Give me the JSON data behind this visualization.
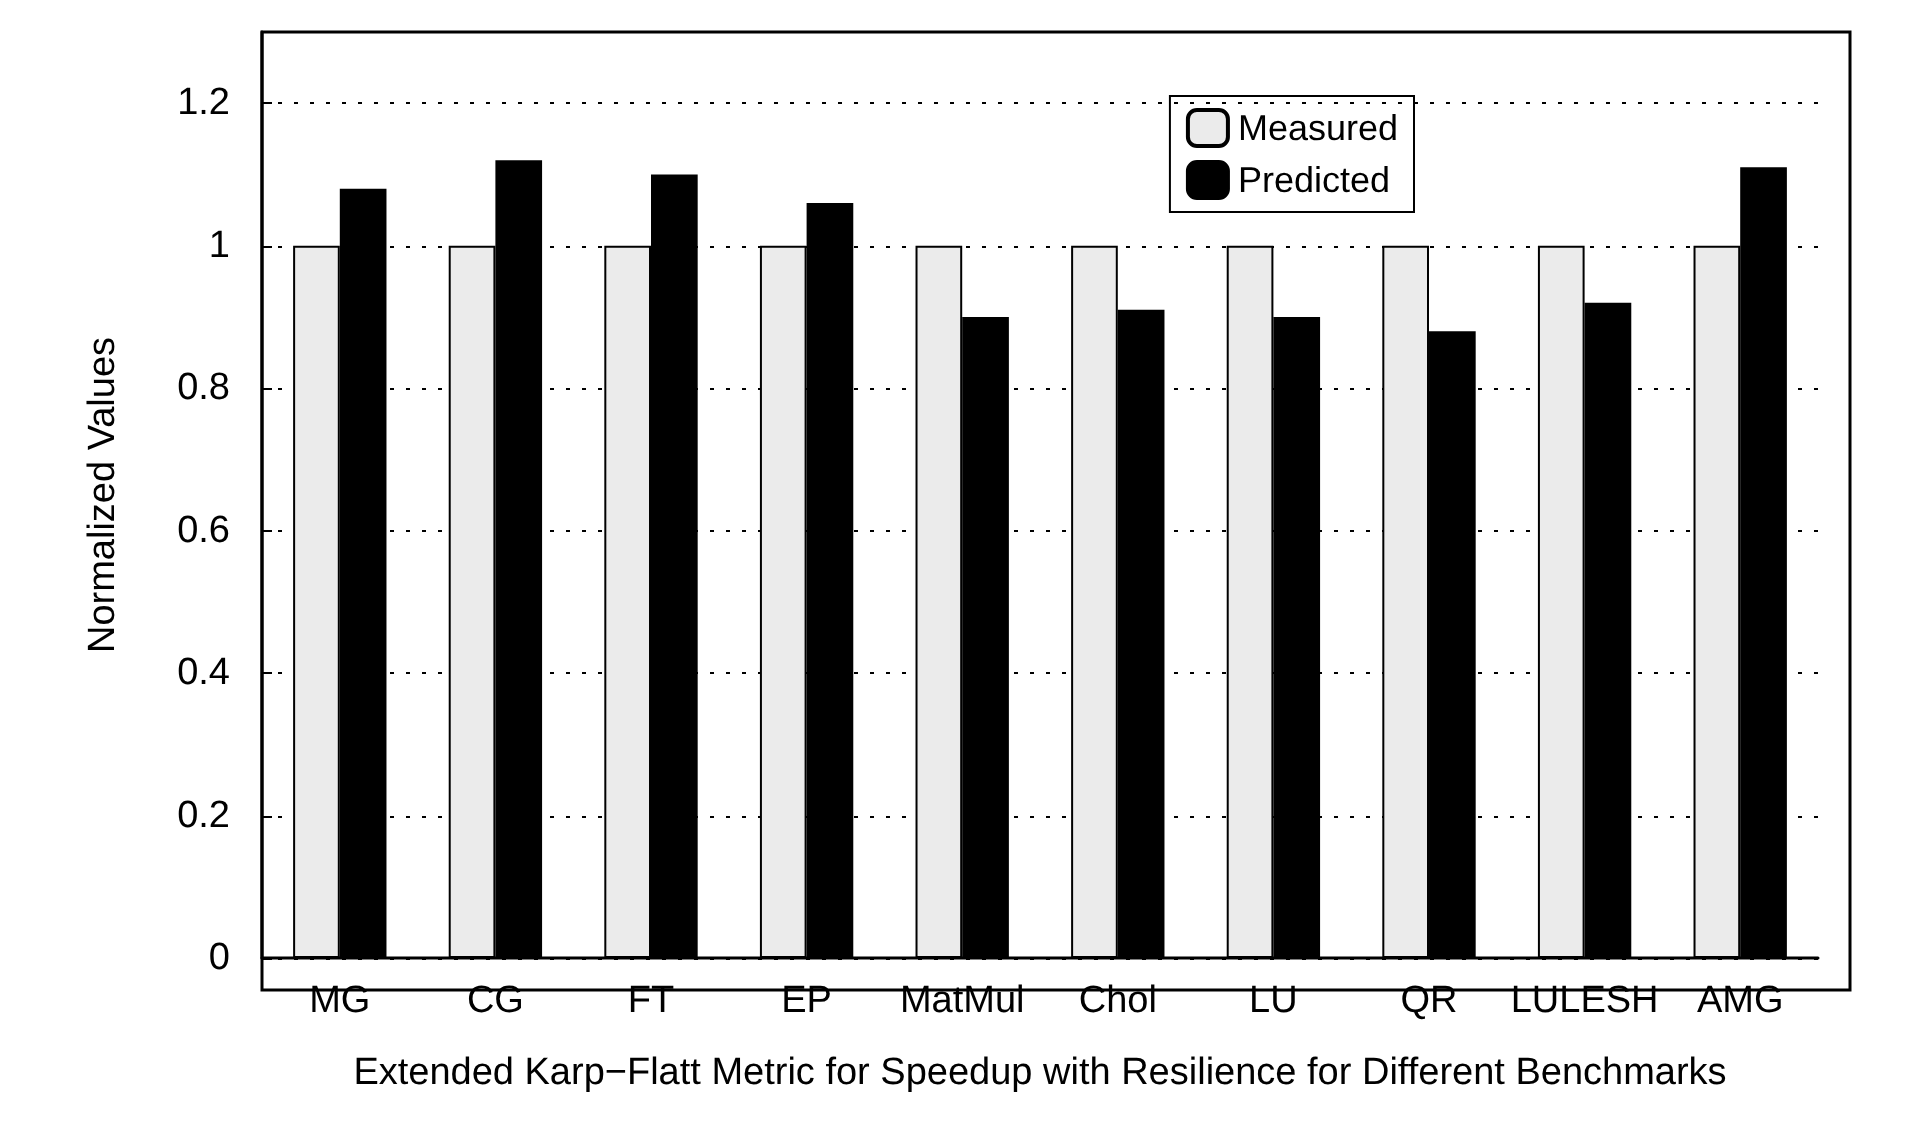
{
  "chart_data": {
    "type": "bar",
    "xlabel": "Extended Karp−Flatt Metric for Speedup with Resilience for Different Benchmarks",
    "ylabel": "Normalized Values",
    "categories": [
      "MG",
      "CG",
      "FT",
      "EP",
      "MatMul",
      "Chol",
      "LU",
      "QR",
      "LULESH",
      "AMG"
    ],
    "series": [
      {
        "name": "Measured",
        "color": "#ebebeb",
        "values": [
          1,
          1,
          1,
          1,
          1,
          1,
          1,
          1,
          1,
          1
        ]
      },
      {
        "name": "Predicted",
        "color": "#000000",
        "values": [
          1.08,
          1.12,
          1.1,
          1.06,
          0.9,
          0.91,
          0.9,
          0.88,
          0.92,
          1.11
        ]
      }
    ],
    "ylim": [
      0,
      1.3
    ],
    "yticks": [
      0,
      0.2,
      0.4,
      0.6,
      0.8,
      1,
      1.2
    ],
    "grid": "y",
    "legend": "top right"
  }
}
